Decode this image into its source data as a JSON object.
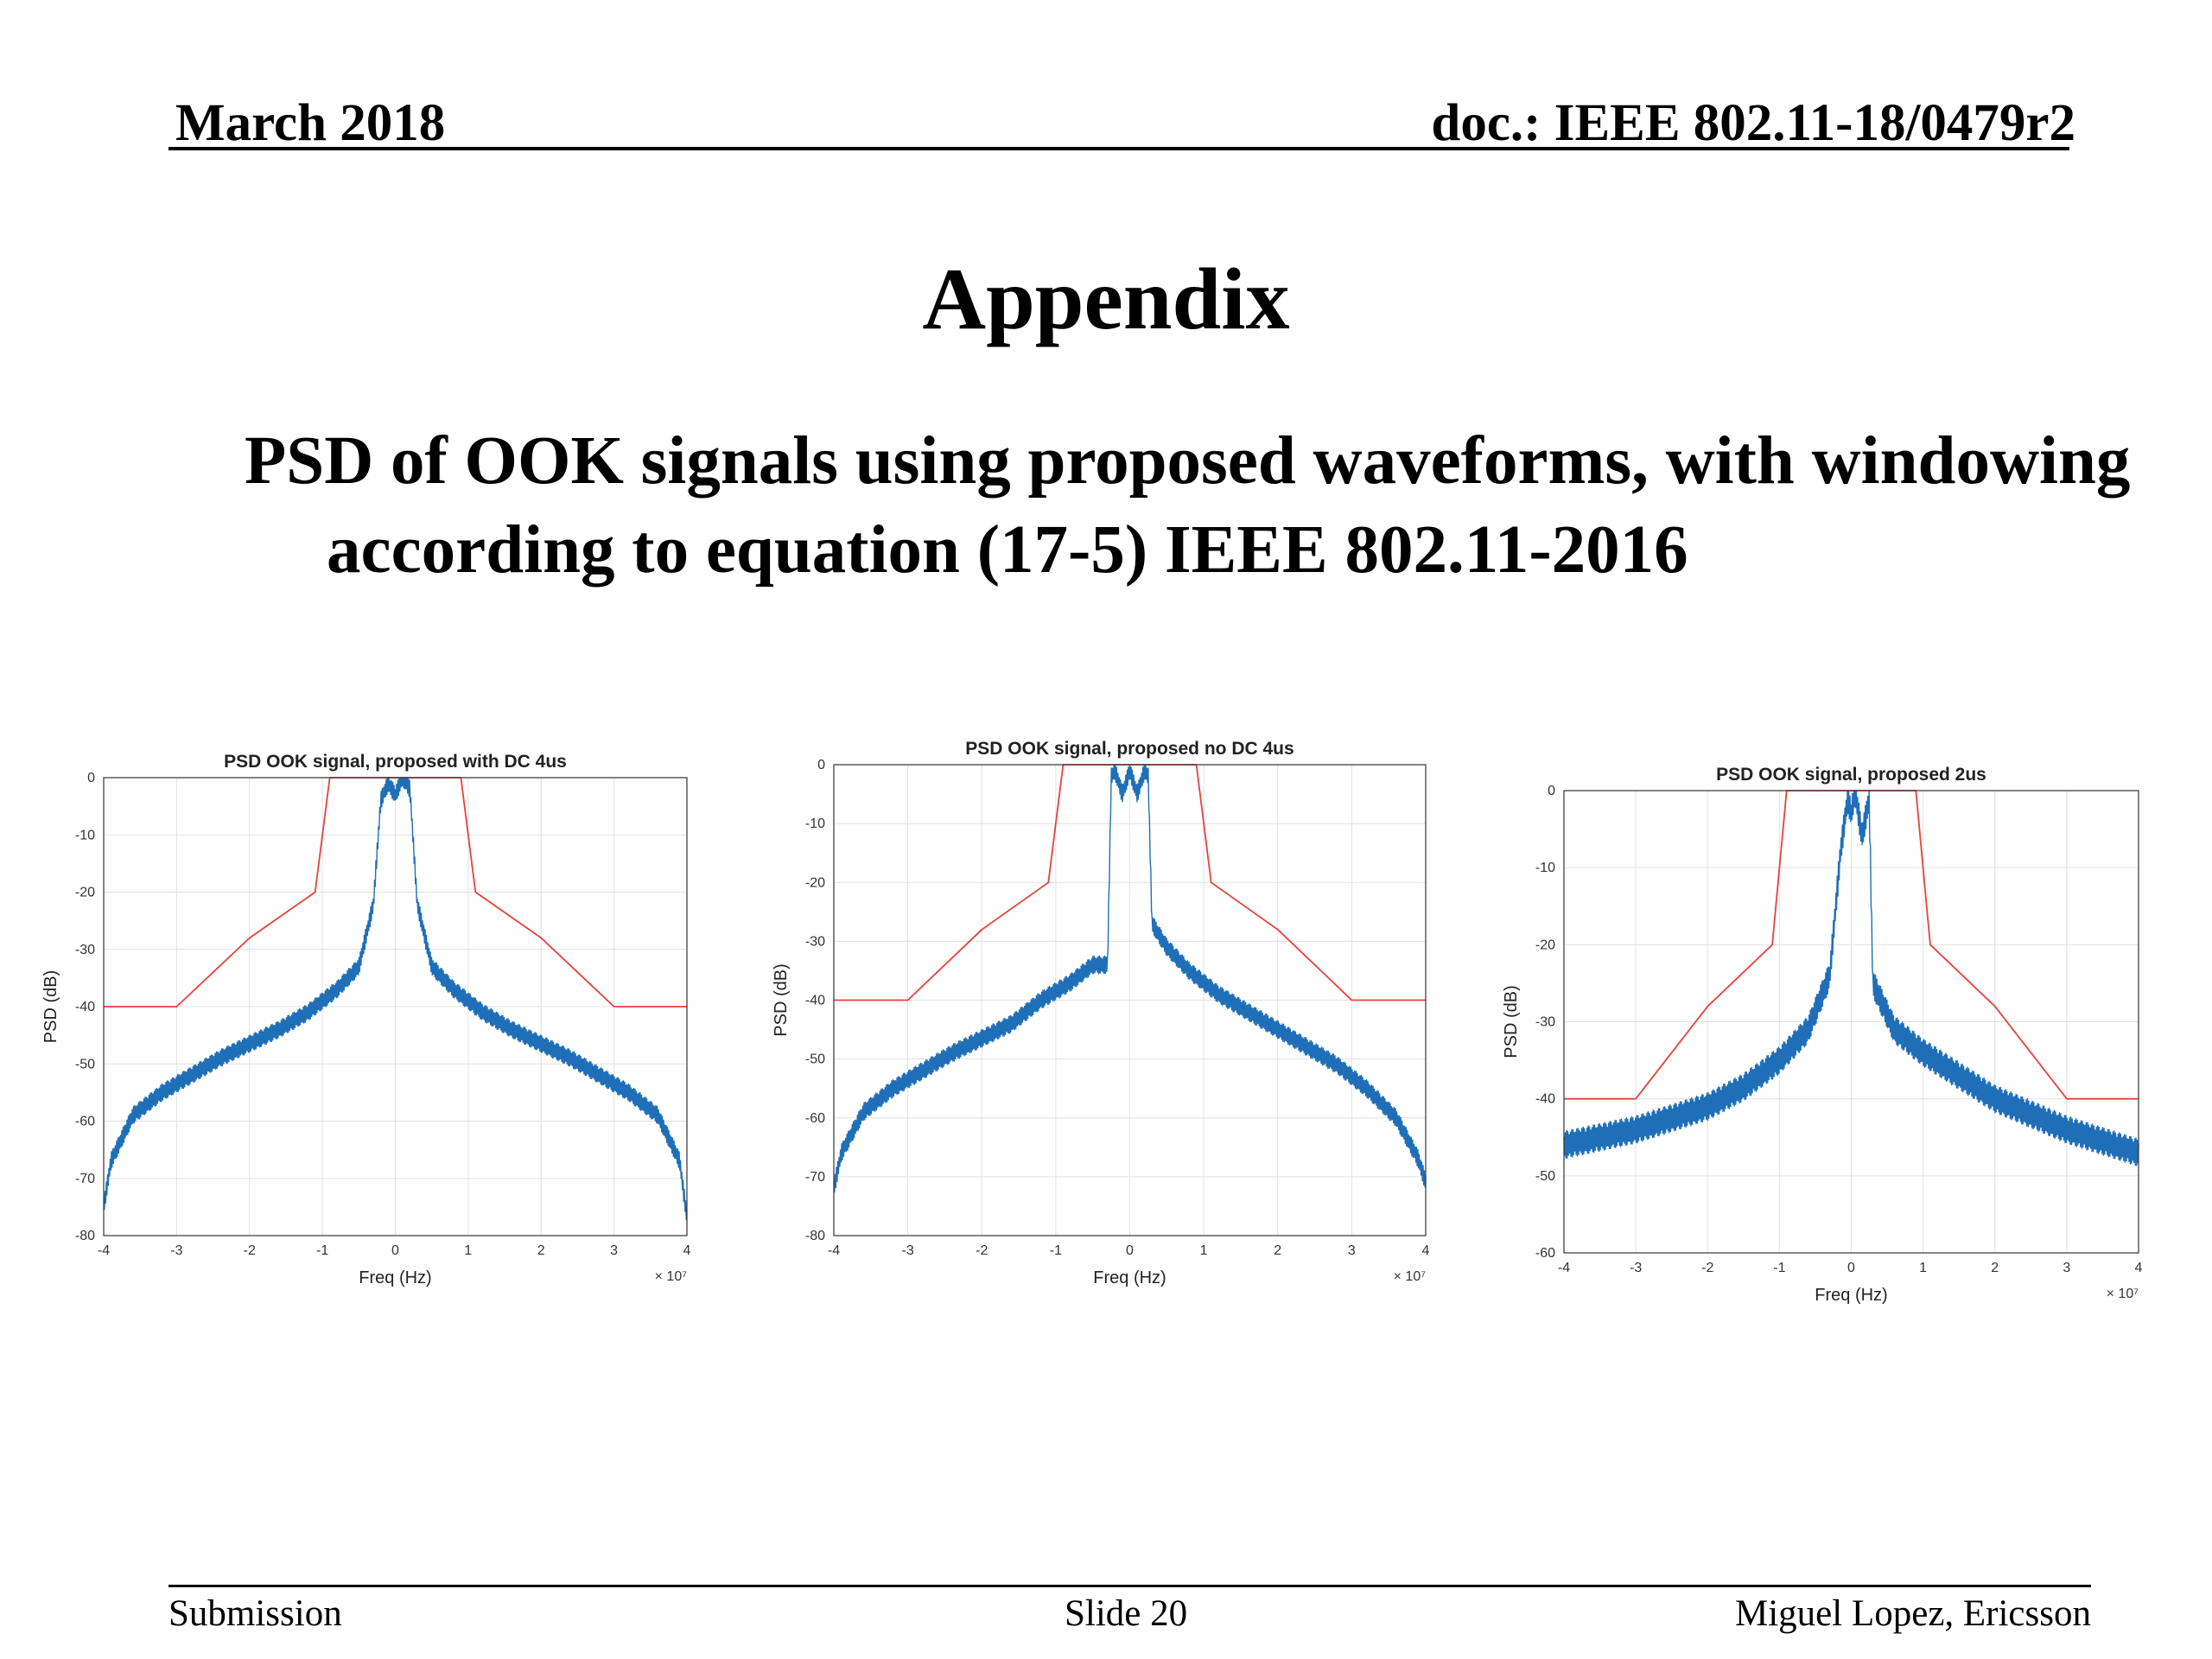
{
  "header": {
    "date": "March 2018",
    "doc": "doc.: IEEE 802.11-18/0479r2"
  },
  "slide": {
    "title": "Appendix",
    "subtitle": "PSD of OOK signals using proposed waveforms, with windowing according to equation (17-5) IEEE 802.11-2016"
  },
  "footer": {
    "left": "Submission",
    "center": "Slide 20",
    "right": "Miguel Lopez, Ericsson"
  },
  "colors": {
    "mask": "#e8413c",
    "psd": "#1f6fb8",
    "grid": "#e2e2e2",
    "axis": "#333333"
  },
  "chart_data": [
    {
      "type": "line",
      "title": "PSD OOK signal, proposed with DC 4us",
      "xlabel": "Freq (Hz)",
      "ylabel": "PSD (dB)",
      "x_scale_label": "× 10⁷",
      "xlim": [
        -4,
        4
      ],
      "ylim": [
        -80,
        0
      ],
      "xticks": [
        -4,
        -3,
        -2,
        -1,
        0,
        1,
        2,
        3,
        4
      ],
      "yticks": [
        0,
        -10,
        -20,
        -30,
        -40,
        -50,
        -60,
        -70,
        -80
      ],
      "grid": true,
      "series": [
        {
          "name": "Spectral mask",
          "color": "#e8413c",
          "x": [
            -4,
            -3,
            -2,
            -1.1,
            -0.9,
            0.9,
            1.1,
            2,
            3,
            4
          ],
          "y": [
            -40,
            -40,
            -28,
            -20,
            0,
            0,
            -20,
            -28,
            -40,
            -40
          ]
        },
        {
          "name": "PSD",
          "color": "#1f6fb8",
          "x": [
            -4,
            -3.9,
            -3.6,
            -3.2,
            -2.8,
            -2.4,
            -2,
            -1.6,
            -1.2,
            -0.8,
            -0.5,
            -0.3,
            -0.2,
            -0.1,
            0,
            0.1,
            0.2,
            0.3,
            0.5,
            0.8,
            1.2,
            1.6,
            2,
            2.4,
            2.8,
            3.2,
            3.6,
            3.9,
            4
          ],
          "y": [
            -75,
            -67,
            -59,
            -55,
            -52,
            -49,
            -46.5,
            -44,
            -41,
            -37,
            -33,
            -22,
            -4,
            -1,
            -3,
            0,
            -2,
            -22,
            -33,
            -37,
            -41,
            -44,
            -46.5,
            -49,
            -52,
            -55,
            -59,
            -67,
            -77
          ],
          "ripple": 1.5
        }
      ]
    },
    {
      "type": "line",
      "title": "PSD OOK signal, proposed no DC 4us",
      "xlabel": "Freq (Hz)",
      "ylabel": "PSD (dB)",
      "x_scale_label": "× 10⁷",
      "xlim": [
        -4,
        4
      ],
      "ylim": [
        -80,
        0
      ],
      "xticks": [
        -4,
        -3,
        -2,
        -1,
        0,
        1,
        2,
        3,
        4
      ],
      "yticks": [
        0,
        -10,
        -20,
        -30,
        -40,
        -50,
        -60,
        -70,
        -80
      ],
      "grid": true,
      "series": [
        {
          "name": "Spectral mask",
          "color": "#e8413c",
          "x": [
            -4,
            -3,
            -2,
            -1.1,
            -0.9,
            0.9,
            1.1,
            2,
            3,
            4
          ],
          "y": [
            -40,
            -40,
            -28,
            -20,
            0,
            0,
            -20,
            -28,
            -40,
            -40
          ]
        },
        {
          "name": "PSD",
          "color": "#1f6fb8",
          "x": [
            -4,
            -3.9,
            -3.6,
            -3.2,
            -2.8,
            -2.4,
            -2,
            -1.6,
            -1.2,
            -0.8,
            -0.5,
            -0.3,
            -0.25,
            -0.2,
            -0.1,
            0,
            0.1,
            0.2,
            0.25,
            0.3,
            0.5,
            0.8,
            1.2,
            1.6,
            2,
            2.4,
            2.8,
            3.2,
            3.6,
            3.9,
            4
          ],
          "y": [
            -72,
            -66,
            -59,
            -55,
            -52,
            -49,
            -46.5,
            -44,
            -40,
            -37,
            -34,
            -34,
            -2,
            -1,
            -5,
            -1,
            -5,
            -1,
            -2,
            -27,
            -31,
            -35,
            -39,
            -42,
            -45,
            -48,
            -51,
            -55,
            -60,
            -67,
            -71
          ],
          "ripple": 1.5
        }
      ]
    },
    {
      "type": "line",
      "title": "PSD OOK signal, proposed 2us",
      "xlabel": "Freq (Hz)",
      "ylabel": "PSD (dB)",
      "x_scale_label": "× 10⁷",
      "xlim": [
        -4,
        4
      ],
      "ylim": [
        -60,
        0
      ],
      "xticks": [
        -4,
        -3,
        -2,
        -1,
        0,
        1,
        2,
        3,
        4
      ],
      "yticks": [
        0,
        -10,
        -20,
        -30,
        -40,
        -50,
        -60
      ],
      "grid": true,
      "series": [
        {
          "name": "Spectral mask",
          "color": "#e8413c",
          "x": [
            -4,
            -3,
            -2,
            -1.1,
            -0.9,
            0.9,
            1.1,
            2,
            3,
            4
          ],
          "y": [
            -40,
            -40,
            -28,
            -20,
            0,
            0,
            -20,
            -28,
            -40,
            -40
          ]
        },
        {
          "name": "PSD",
          "color": "#1f6fb8",
          "x": [
            -4,
            -3,
            -2,
            -1.5,
            -1,
            -0.6,
            -0.3,
            -0.15,
            -0.05,
            0,
            0.05,
            0.15,
            0.25,
            0.3,
            0.6,
            1,
            1.5,
            2,
            3,
            4
          ],
          "y": [
            -46,
            -44,
            -41,
            -38.5,
            -35,
            -31,
            -24,
            -8,
            -1,
            -3,
            0,
            -6,
            -1,
            -25,
            -31,
            -34,
            -37,
            -40,
            -44,
            -47
          ],
          "ripple": 1.8
        }
      ]
    }
  ]
}
